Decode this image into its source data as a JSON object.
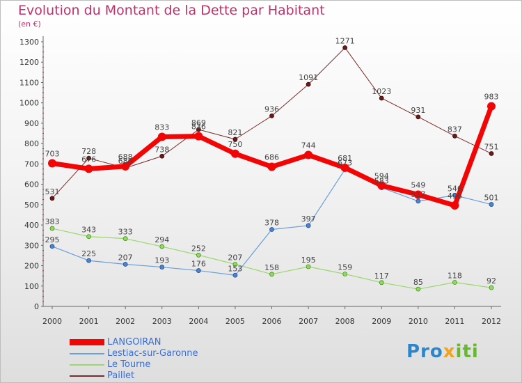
{
  "header": {
    "title": "Evolution du Montant de la Dette par Habitant",
    "subtitle": "(en €)"
  },
  "logo": {
    "part1": "Pro",
    "part2": "x",
    "part3": "iti"
  },
  "colors": {
    "title": "#c0306a",
    "LANGOIRAN": "#f20505",
    "Lestiac-sur-Garonne": "#6a9fd8",
    "Le Tourne": "#9ad86a",
    "Paillet": "#7a2b2b"
  },
  "chart_data": {
    "type": "line",
    "title": "Evolution du Montant de la Dette par Habitant",
    "subtitle": "(en €)",
    "x": [
      "2000",
      "2001",
      "2002",
      "2003",
      "2004",
      "2005",
      "2006",
      "2007",
      "2008",
      "2009",
      "2010",
      "2011",
      "2012"
    ],
    "ylim": [
      0,
      1300
    ],
    "yticks": [
      0,
      100,
      200,
      300,
      400,
      500,
      600,
      700,
      800,
      900,
      1000,
      1100,
      1200,
      1300
    ],
    "grid": false,
    "legend_position": "bottom-left",
    "series": [
      {
        "name": "LANGOIRAN",
        "values": [
          703,
          676,
          688,
          833,
          836,
          750,
          686,
          744,
          681,
          594,
          549,
          496,
          983
        ]
      },
      {
        "name": "Lestiac-sur-Garonne",
        "values": [
          295,
          225,
          207,
          193,
          176,
          153,
          378,
          397,
          673,
          583,
          517,
          546,
          501
        ]
      },
      {
        "name": "Le Tourne",
        "values": [
          383,
          343,
          333,
          294,
          252,
          207,
          158,
          195,
          159,
          117,
          85,
          118,
          92
        ]
      },
      {
        "name": "Paillet",
        "values": [
          531,
          728,
          680,
          738,
          869,
          821,
          936,
          1091,
          1271,
          1023,
          931,
          837,
          751
        ]
      }
    ]
  }
}
